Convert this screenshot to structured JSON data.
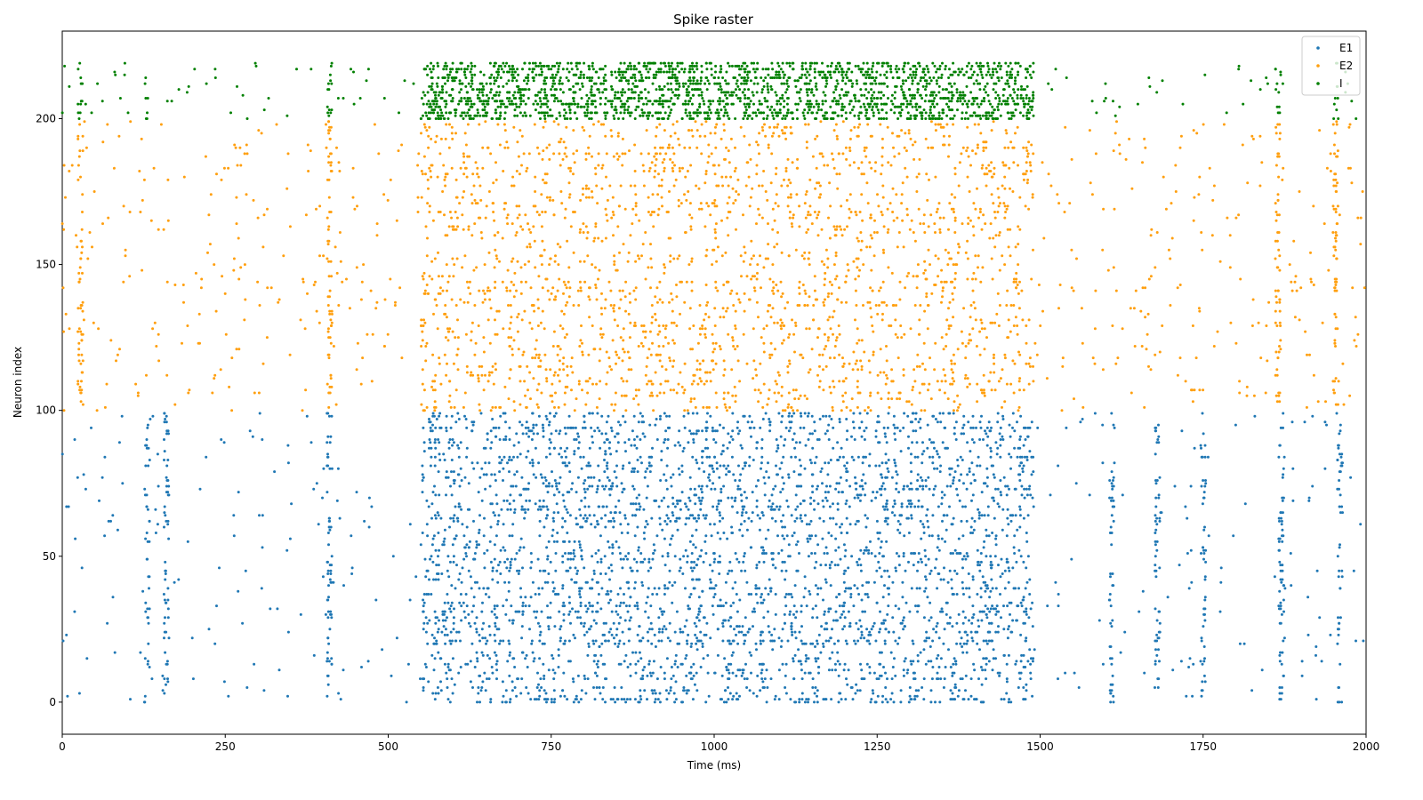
{
  "chart_data": {
    "type": "scatter",
    "title": "Spike raster",
    "xlabel": "Time (ms)",
    "ylabel": "Neuron index",
    "xlim": [
      0,
      2000
    ],
    "ylim": [
      -11,
      230
    ],
    "xticks": [
      0,
      250,
      500,
      750,
      1000,
      1250,
      1500,
      1750,
      2000
    ],
    "yticks": [
      0,
      50,
      100,
      150,
      200
    ],
    "grid": false,
    "legend_position": "top-right",
    "series": [
      {
        "name": "E1",
        "color": "#1f77b4",
        "index_range": [
          0,
          99
        ],
        "activity": {
          "baseline_rate_hz": 2,
          "high_activity_window_ms": [
            550,
            1490
          ],
          "high_activity_rate_hz": 40,
          "bursts_ms": [
            130,
            160,
            410,
            1610,
            1680,
            1750,
            1870,
            1960
          ]
        }
      },
      {
        "name": "E2",
        "color": "#ff9f0e",
        "index_range": [
          100,
          199
        ],
        "activity": {
          "baseline_rate_hz": 4,
          "high_activity_window_ms": [
            550,
            1490
          ],
          "high_activity_rate_hz": 25,
          "bursts_ms": [
            28,
            410,
            1865,
            1953
          ]
        }
      },
      {
        "name": "I",
        "color": "#008000",
        "index_range": [
          200,
          219
        ],
        "activity": {
          "baseline_rate_hz": 3,
          "high_activity_window_ms": [
            550,
            1490
          ],
          "high_activity_rate_hz": 120,
          "bursts_ms": [
            28,
            130,
            410,
            1865,
            1953
          ]
        }
      }
    ]
  }
}
